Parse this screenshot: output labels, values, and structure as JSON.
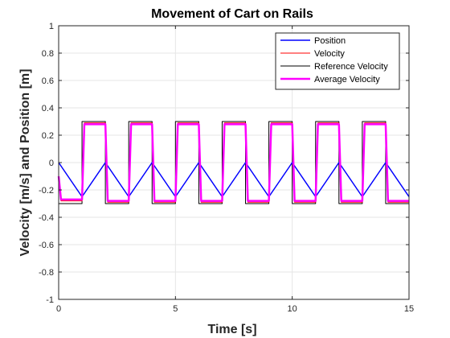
{
  "chart_data": {
    "type": "line",
    "title": "Movement of Cart on Rails",
    "xlabel": "Time [s]",
    "ylabel": "Velocity [m/s] and Position [m]",
    "xlim": [
      0,
      15
    ],
    "ylim": [
      -1,
      1
    ],
    "xticks": [
      0,
      5,
      10,
      15
    ],
    "yticks": [
      -1,
      -0.8,
      -0.6,
      -0.4,
      -0.2,
      0,
      0.2,
      0.4,
      0.6,
      0.8,
      1
    ],
    "grid": true,
    "legend_position": "top-right",
    "series": [
      {
        "name": "Position",
        "color": "#0000ff",
        "x": [
          0,
          1,
          2,
          3,
          4,
          5,
          6,
          7,
          8,
          9,
          10,
          11,
          12,
          13,
          14,
          15
        ],
        "y": [
          0,
          -0.25,
          0,
          -0.25,
          0,
          -0.25,
          0,
          -0.25,
          0,
          -0.25,
          0,
          -0.25,
          0,
          -0.25,
          0,
          -0.25
        ]
      },
      {
        "name": "Velocity",
        "color": "#ff0000",
        "x": [
          0,
          0.1,
          1,
          1.1,
          2,
          2.1,
          3,
          3.1,
          4,
          4.1,
          5,
          5.1,
          6,
          6.1,
          7,
          7.1,
          8,
          8.1,
          9,
          9.1,
          10,
          10.1,
          11,
          11.1,
          12,
          12.1,
          13,
          13.1,
          14,
          14.1,
          15
        ],
        "y": [
          -0.1,
          -0.28,
          -0.28,
          0.29,
          0.29,
          -0.29,
          -0.29,
          0.29,
          0.29,
          -0.29,
          -0.29,
          0.29,
          0.29,
          -0.29,
          -0.29,
          0.29,
          0.29,
          -0.29,
          -0.29,
          0.29,
          0.29,
          -0.29,
          -0.29,
          0.29,
          0.29,
          -0.29,
          -0.29,
          0.29,
          0.29,
          -0.29,
          -0.29
        ]
      },
      {
        "name": "Reference Velocity",
        "color": "#000000",
        "x": [
          0,
          0,
          1,
          1,
          2,
          2,
          3,
          3,
          4,
          4,
          5,
          5,
          6,
          6,
          7,
          7,
          8,
          8,
          9,
          9,
          10,
          10,
          11,
          11,
          12,
          12,
          13,
          13,
          14,
          14,
          15
        ],
        "y": [
          0,
          -0.3,
          -0.3,
          0.3,
          0.3,
          -0.3,
          -0.3,
          0.3,
          0.3,
          -0.3,
          -0.3,
          0.3,
          0.3,
          -0.3,
          -0.3,
          0.3,
          0.3,
          -0.3,
          -0.3,
          0.3,
          0.3,
          -0.3,
          -0.3,
          0.3,
          0.3,
          -0.3,
          -0.3,
          0.3,
          0.3,
          -0.3,
          -0.3
        ]
      },
      {
        "name": "Average Velocity",
        "color": "#ff00ff",
        "x": [
          0,
          0.1,
          1,
          1.1,
          2,
          2.1,
          3,
          3.1,
          4,
          4.1,
          5,
          5.1,
          6,
          6.1,
          7,
          7.1,
          8,
          8.1,
          9,
          9.1,
          10,
          10.1,
          11,
          11.1,
          12,
          12.1,
          13,
          13.1,
          14,
          14.1,
          15
        ],
        "y": [
          -0.1,
          -0.27,
          -0.27,
          0.28,
          0.28,
          -0.28,
          -0.28,
          0.28,
          0.28,
          -0.28,
          -0.28,
          0.28,
          0.28,
          -0.28,
          -0.28,
          0.28,
          0.28,
          -0.28,
          -0.28,
          0.28,
          0.28,
          -0.28,
          -0.28,
          0.28,
          0.28,
          -0.28,
          -0.28,
          0.28,
          0.28,
          -0.28,
          -0.28
        ]
      }
    ]
  }
}
